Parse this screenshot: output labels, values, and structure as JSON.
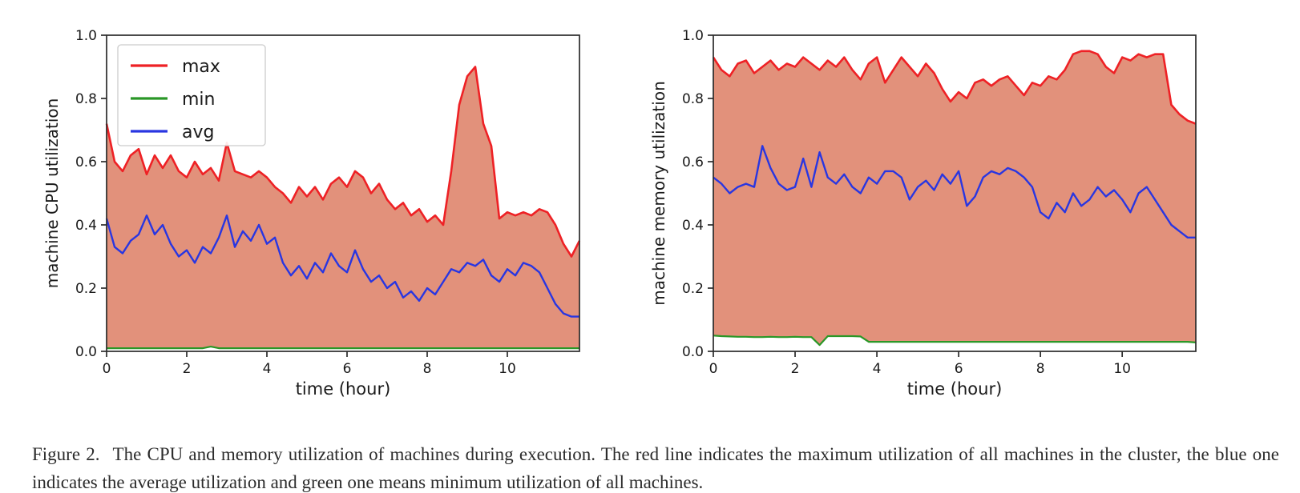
{
  "caption": {
    "label": "Figure 2.",
    "text": "The CPU and memory utilization of machines during execution. The red line indicates the maximum utilization of all machines in the cluster, the blue one indicates the average utilization and green one means minimum utilization of all machines."
  },
  "palette": {
    "max": "#ee2125",
    "min": "#2a9727",
    "avg": "#2936e1",
    "fill": "#e2917b",
    "axis": "#2b2b2b",
    "text": "#1a1a1a",
    "legend_border": "#cccccc",
    "legend_bg": "#ffffff"
  },
  "chart_data": [
    {
      "type": "area",
      "title": "",
      "xlabel": "time (hour)",
      "ylabel": "machine CPU utilization",
      "xlim": [
        0,
        11.8
      ],
      "ylim": [
        0,
        1.0
      ],
      "xticks": [
        0,
        2,
        4,
        6,
        8,
        10
      ],
      "yticks": [
        0.0,
        0.2,
        0.4,
        0.6,
        0.8,
        1.0
      ],
      "x_start": 0,
      "x_step": 0.2,
      "grid": false,
      "legend": {
        "visible": true,
        "position": "upper-left",
        "entries": [
          {
            "label": "max"
          },
          {
            "label": "min"
          },
          {
            "label": "avg"
          }
        ]
      },
      "fill_between": [
        "min",
        "max"
      ],
      "series": [
        {
          "name": "max",
          "values": [
            0.72,
            0.6,
            0.57,
            0.62,
            0.64,
            0.56,
            0.62,
            0.58,
            0.62,
            0.57,
            0.55,
            0.6,
            0.56,
            0.58,
            0.54,
            0.66,
            0.57,
            0.56,
            0.55,
            0.57,
            0.55,
            0.52,
            0.5,
            0.47,
            0.52,
            0.49,
            0.52,
            0.48,
            0.53,
            0.55,
            0.52,
            0.57,
            0.55,
            0.5,
            0.53,
            0.48,
            0.45,
            0.47,
            0.43,
            0.45,
            0.41,
            0.43,
            0.4,
            0.57,
            0.78,
            0.87,
            0.9,
            0.72,
            0.65,
            0.42,
            0.44,
            0.43,
            0.44,
            0.43,
            0.45,
            0.44,
            0.4,
            0.34,
            0.3,
            0.35
          ]
        },
        {
          "name": "min",
          "values": [
            0.01,
            0.01,
            0.01,
            0.01,
            0.01,
            0.01,
            0.01,
            0.01,
            0.01,
            0.01,
            0.01,
            0.01,
            0.01,
            0.015,
            0.01,
            0.01,
            0.01,
            0.01,
            0.01,
            0.01,
            0.01,
            0.01,
            0.01,
            0.01,
            0.01,
            0.01,
            0.01,
            0.01,
            0.01,
            0.01,
            0.01,
            0.01,
            0.01,
            0.01,
            0.01,
            0.01,
            0.01,
            0.01,
            0.01,
            0.01,
            0.01,
            0.01,
            0.01,
            0.01,
            0.01,
            0.01,
            0.01,
            0.01,
            0.01,
            0.01,
            0.01,
            0.01,
            0.01,
            0.01,
            0.01,
            0.01,
            0.01,
            0.01,
            0.01,
            0.01
          ]
        },
        {
          "name": "avg",
          "values": [
            0.42,
            0.33,
            0.31,
            0.35,
            0.37,
            0.43,
            0.37,
            0.4,
            0.34,
            0.3,
            0.32,
            0.28,
            0.33,
            0.31,
            0.36,
            0.43,
            0.33,
            0.38,
            0.35,
            0.4,
            0.34,
            0.36,
            0.28,
            0.24,
            0.27,
            0.23,
            0.28,
            0.25,
            0.31,
            0.27,
            0.25,
            0.32,
            0.26,
            0.22,
            0.24,
            0.2,
            0.22,
            0.17,
            0.19,
            0.16,
            0.2,
            0.18,
            0.22,
            0.26,
            0.25,
            0.28,
            0.27,
            0.29,
            0.24,
            0.22,
            0.26,
            0.24,
            0.28,
            0.27,
            0.25,
            0.2,
            0.15,
            0.12,
            0.11,
            0.11
          ]
        }
      ]
    },
    {
      "type": "area",
      "title": "",
      "xlabel": "time (hour)",
      "ylabel": "machine memory utilization",
      "xlim": [
        0,
        11.8
      ],
      "ylim": [
        0,
        1.0
      ],
      "xticks": [
        0,
        2,
        4,
        6,
        8,
        10
      ],
      "yticks": [
        0.0,
        0.2,
        0.4,
        0.6,
        0.8,
        1.0
      ],
      "x_start": 0,
      "x_step": 0.2,
      "grid": false,
      "legend": {
        "visible": false,
        "position": "",
        "entries": []
      },
      "fill_between": [
        "min",
        "max"
      ],
      "series": [
        {
          "name": "max",
          "values": [
            0.93,
            0.89,
            0.87,
            0.91,
            0.92,
            0.88,
            0.9,
            0.92,
            0.89,
            0.91,
            0.9,
            0.93,
            0.91,
            0.89,
            0.92,
            0.9,
            0.93,
            0.89,
            0.86,
            0.91,
            0.93,
            0.85,
            0.89,
            0.93,
            0.9,
            0.87,
            0.91,
            0.88,
            0.83,
            0.79,
            0.82,
            0.8,
            0.85,
            0.86,
            0.84,
            0.86,
            0.87,
            0.84,
            0.81,
            0.85,
            0.84,
            0.87,
            0.86,
            0.89,
            0.94,
            0.95,
            0.95,
            0.94,
            0.9,
            0.88,
            0.93,
            0.92,
            0.94,
            0.93,
            0.94,
            0.94,
            0.78,
            0.75,
            0.73,
            0.72
          ]
        },
        {
          "name": "min",
          "values": [
            0.05,
            0.048,
            0.047,
            0.046,
            0.046,
            0.045,
            0.045,
            0.046,
            0.045,
            0.045,
            0.046,
            0.045,
            0.045,
            0.02,
            0.048,
            0.048,
            0.048,
            0.048,
            0.047,
            0.03,
            0.03,
            0.03,
            0.03,
            0.03,
            0.03,
            0.03,
            0.03,
            0.03,
            0.03,
            0.03,
            0.03,
            0.03,
            0.03,
            0.03,
            0.03,
            0.03,
            0.03,
            0.03,
            0.03,
            0.03,
            0.03,
            0.03,
            0.03,
            0.03,
            0.03,
            0.03,
            0.03,
            0.03,
            0.03,
            0.03,
            0.03,
            0.03,
            0.03,
            0.03,
            0.03,
            0.03,
            0.03,
            0.03,
            0.03,
            0.028
          ]
        },
        {
          "name": "avg",
          "values": [
            0.55,
            0.53,
            0.5,
            0.52,
            0.53,
            0.52,
            0.65,
            0.58,
            0.53,
            0.51,
            0.52,
            0.61,
            0.52,
            0.63,
            0.55,
            0.53,
            0.56,
            0.52,
            0.5,
            0.55,
            0.53,
            0.57,
            0.57,
            0.55,
            0.48,
            0.52,
            0.54,
            0.51,
            0.56,
            0.53,
            0.57,
            0.46,
            0.49,
            0.55,
            0.57,
            0.56,
            0.58,
            0.57,
            0.55,
            0.52,
            0.44,
            0.42,
            0.47,
            0.44,
            0.5,
            0.46,
            0.48,
            0.52,
            0.49,
            0.51,
            0.48,
            0.44,
            0.5,
            0.52,
            0.48,
            0.44,
            0.4,
            0.38,
            0.36,
            0.36
          ]
        }
      ]
    }
  ]
}
